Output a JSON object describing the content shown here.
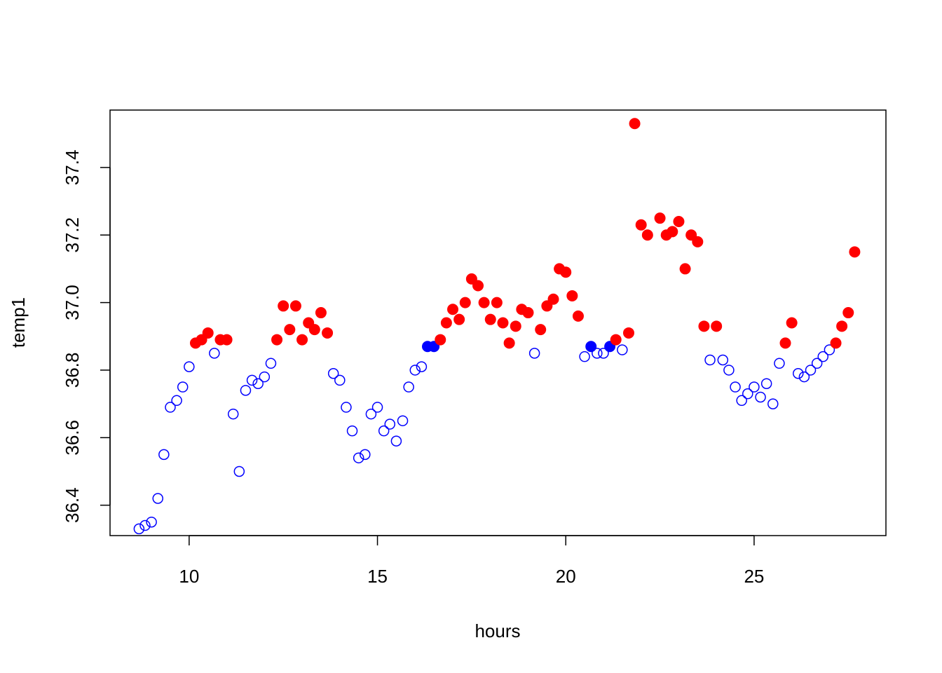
{
  "chart_data": {
    "type": "scatter",
    "title": "",
    "xlabel": "hours",
    "ylabel": "temp1",
    "xlim": [
      7.9,
      28.5
    ],
    "ylim": [
      36.31,
      37.57
    ],
    "x_ticks": [
      10,
      15,
      20,
      25
    ],
    "y_ticks": [
      36.4,
      36.6,
      36.8,
      37.0,
      37.2,
      37.4
    ],
    "x_tick_labels": [
      "10",
      "15",
      "20",
      "25"
    ],
    "y_tick_labels": [
      "36.4",
      "36.6",
      "36.8",
      "37.0",
      "37.2",
      "37.4"
    ],
    "grid": false,
    "legend": "none",
    "colors": {
      "red": "#ff0000",
      "blue": "#0000ff"
    },
    "points": [
      {
        "x": 8.67,
        "y": 36.33,
        "c": "blue",
        "f": false
      },
      {
        "x": 8.83,
        "y": 36.34,
        "c": "blue",
        "f": false
      },
      {
        "x": 9.0,
        "y": 36.35,
        "c": "blue",
        "f": false
      },
      {
        "x": 9.17,
        "y": 36.42,
        "c": "blue",
        "f": false
      },
      {
        "x": 9.33,
        "y": 36.55,
        "c": "blue",
        "f": false
      },
      {
        "x": 9.5,
        "y": 36.69,
        "c": "blue",
        "f": false
      },
      {
        "x": 9.67,
        "y": 36.71,
        "c": "blue",
        "f": false
      },
      {
        "x": 9.83,
        "y": 36.75,
        "c": "blue",
        "f": false
      },
      {
        "x": 10.0,
        "y": 36.81,
        "c": "blue",
        "f": false
      },
      {
        "x": 10.17,
        "y": 36.88,
        "c": "red",
        "f": true
      },
      {
        "x": 10.33,
        "y": 36.89,
        "c": "red",
        "f": true
      },
      {
        "x": 10.5,
        "y": 36.91,
        "c": "red",
        "f": true
      },
      {
        "x": 10.67,
        "y": 36.85,
        "c": "blue",
        "f": false
      },
      {
        "x": 10.83,
        "y": 36.89,
        "c": "red",
        "f": true
      },
      {
        "x": 11.0,
        "y": 36.89,
        "c": "red",
        "f": true
      },
      {
        "x": 11.17,
        "y": 36.67,
        "c": "blue",
        "f": false
      },
      {
        "x": 11.33,
        "y": 36.5,
        "c": "blue",
        "f": false
      },
      {
        "x": 11.5,
        "y": 36.74,
        "c": "blue",
        "f": false
      },
      {
        "x": 11.67,
        "y": 36.77,
        "c": "blue",
        "f": false
      },
      {
        "x": 11.83,
        "y": 36.76,
        "c": "blue",
        "f": false
      },
      {
        "x": 12.0,
        "y": 36.78,
        "c": "blue",
        "f": false
      },
      {
        "x": 12.17,
        "y": 36.82,
        "c": "blue",
        "f": false
      },
      {
        "x": 12.33,
        "y": 36.89,
        "c": "red",
        "f": true
      },
      {
        "x": 12.5,
        "y": 36.99,
        "c": "red",
        "f": true
      },
      {
        "x": 12.67,
        "y": 36.92,
        "c": "red",
        "f": true
      },
      {
        "x": 12.83,
        "y": 36.99,
        "c": "red",
        "f": true
      },
      {
        "x": 13.0,
        "y": 36.89,
        "c": "red",
        "f": true
      },
      {
        "x": 13.17,
        "y": 36.94,
        "c": "red",
        "f": true
      },
      {
        "x": 13.33,
        "y": 36.92,
        "c": "red",
        "f": true
      },
      {
        "x": 13.5,
        "y": 36.97,
        "c": "red",
        "f": true
      },
      {
        "x": 13.67,
        "y": 36.91,
        "c": "red",
        "f": true
      },
      {
        "x": 13.83,
        "y": 36.79,
        "c": "blue",
        "f": false
      },
      {
        "x": 14.0,
        "y": 36.77,
        "c": "blue",
        "f": false
      },
      {
        "x": 14.17,
        "y": 36.69,
        "c": "blue",
        "f": false
      },
      {
        "x": 14.33,
        "y": 36.62,
        "c": "blue",
        "f": false
      },
      {
        "x": 14.5,
        "y": 36.54,
        "c": "blue",
        "f": false
      },
      {
        "x": 14.67,
        "y": 36.55,
        "c": "blue",
        "f": false
      },
      {
        "x": 14.83,
        "y": 36.67,
        "c": "blue",
        "f": false
      },
      {
        "x": 15.0,
        "y": 36.69,
        "c": "blue",
        "f": false
      },
      {
        "x": 15.17,
        "y": 36.62,
        "c": "blue",
        "f": false
      },
      {
        "x": 15.33,
        "y": 36.64,
        "c": "blue",
        "f": false
      },
      {
        "x": 15.5,
        "y": 36.59,
        "c": "blue",
        "f": false
      },
      {
        "x": 15.67,
        "y": 36.65,
        "c": "blue",
        "f": false
      },
      {
        "x": 15.83,
        "y": 36.75,
        "c": "blue",
        "f": false
      },
      {
        "x": 16.0,
        "y": 36.8,
        "c": "blue",
        "f": false
      },
      {
        "x": 16.17,
        "y": 36.81,
        "c": "blue",
        "f": false
      },
      {
        "x": 16.33,
        "y": 36.87,
        "c": "blue",
        "f": true
      },
      {
        "x": 16.5,
        "y": 36.87,
        "c": "blue",
        "f": true
      },
      {
        "x": 16.67,
        "y": 36.89,
        "c": "red",
        "f": true
      },
      {
        "x": 16.83,
        "y": 36.94,
        "c": "red",
        "f": true
      },
      {
        "x": 17.0,
        "y": 36.98,
        "c": "red",
        "f": true
      },
      {
        "x": 17.17,
        "y": 36.95,
        "c": "red",
        "f": true
      },
      {
        "x": 17.33,
        "y": 37.0,
        "c": "red",
        "f": true
      },
      {
        "x": 17.5,
        "y": 37.07,
        "c": "red",
        "f": true
      },
      {
        "x": 17.67,
        "y": 37.05,
        "c": "red",
        "f": true
      },
      {
        "x": 17.83,
        "y": 37.0,
        "c": "red",
        "f": true
      },
      {
        "x": 18.0,
        "y": 36.95,
        "c": "red",
        "f": true
      },
      {
        "x": 18.17,
        "y": 37.0,
        "c": "red",
        "f": true
      },
      {
        "x": 18.33,
        "y": 36.94,
        "c": "red",
        "f": true
      },
      {
        "x": 18.5,
        "y": 36.88,
        "c": "red",
        "f": true
      },
      {
        "x": 18.67,
        "y": 36.93,
        "c": "red",
        "f": true
      },
      {
        "x": 18.83,
        "y": 36.98,
        "c": "red",
        "f": true
      },
      {
        "x": 19.0,
        "y": 36.97,
        "c": "red",
        "f": true
      },
      {
        "x": 19.17,
        "y": 36.85,
        "c": "blue",
        "f": false
      },
      {
        "x": 19.33,
        "y": 36.92,
        "c": "red",
        "f": true
      },
      {
        "x": 19.5,
        "y": 36.99,
        "c": "red",
        "f": true
      },
      {
        "x": 19.67,
        "y": 37.01,
        "c": "red",
        "f": true
      },
      {
        "x": 19.83,
        "y": 37.1,
        "c": "red",
        "f": true
      },
      {
        "x": 20.0,
        "y": 37.09,
        "c": "red",
        "f": true
      },
      {
        "x": 20.17,
        "y": 37.02,
        "c": "red",
        "f": true
      },
      {
        "x": 20.33,
        "y": 36.96,
        "c": "red",
        "f": true
      },
      {
        "x": 20.5,
        "y": 36.84,
        "c": "blue",
        "f": false
      },
      {
        "x": 20.67,
        "y": 36.87,
        "c": "blue",
        "f": true
      },
      {
        "x": 20.83,
        "y": 36.85,
        "c": "blue",
        "f": false
      },
      {
        "x": 21.0,
        "y": 36.85,
        "c": "blue",
        "f": false
      },
      {
        "x": 21.17,
        "y": 36.87,
        "c": "blue",
        "f": true
      },
      {
        "x": 21.33,
        "y": 36.89,
        "c": "red",
        "f": true
      },
      {
        "x": 21.5,
        "y": 36.86,
        "c": "blue",
        "f": false
      },
      {
        "x": 21.67,
        "y": 36.91,
        "c": "red",
        "f": true
      },
      {
        "x": 21.83,
        "y": 37.53,
        "c": "red",
        "f": true
      },
      {
        "x": 22.0,
        "y": 37.23,
        "c": "red",
        "f": true
      },
      {
        "x": 22.17,
        "y": 37.2,
        "c": "red",
        "f": true
      },
      {
        "x": 22.5,
        "y": 37.25,
        "c": "red",
        "f": true
      },
      {
        "x": 22.67,
        "y": 37.2,
        "c": "red",
        "f": true
      },
      {
        "x": 22.83,
        "y": 37.21,
        "c": "red",
        "f": true
      },
      {
        "x": 23.0,
        "y": 37.24,
        "c": "red",
        "f": true
      },
      {
        "x": 23.17,
        "y": 37.1,
        "c": "red",
        "f": true
      },
      {
        "x": 23.33,
        "y": 37.2,
        "c": "red",
        "f": true
      },
      {
        "x": 23.5,
        "y": 37.18,
        "c": "red",
        "f": true
      },
      {
        "x": 23.67,
        "y": 36.93,
        "c": "red",
        "f": true
      },
      {
        "x": 23.83,
        "y": 36.83,
        "c": "blue",
        "f": false
      },
      {
        "x": 24.0,
        "y": 36.93,
        "c": "red",
        "f": true
      },
      {
        "x": 24.17,
        "y": 36.83,
        "c": "blue",
        "f": false
      },
      {
        "x": 24.33,
        "y": 36.8,
        "c": "blue",
        "f": false
      },
      {
        "x": 24.5,
        "y": 36.75,
        "c": "blue",
        "f": false
      },
      {
        "x": 24.67,
        "y": 36.71,
        "c": "blue",
        "f": false
      },
      {
        "x": 24.83,
        "y": 36.73,
        "c": "blue",
        "f": false
      },
      {
        "x": 25.0,
        "y": 36.75,
        "c": "blue",
        "f": false
      },
      {
        "x": 25.17,
        "y": 36.72,
        "c": "blue",
        "f": false
      },
      {
        "x": 25.33,
        "y": 36.76,
        "c": "blue",
        "f": false
      },
      {
        "x": 25.5,
        "y": 36.7,
        "c": "blue",
        "f": false
      },
      {
        "x": 25.67,
        "y": 36.82,
        "c": "blue",
        "f": false
      },
      {
        "x": 25.83,
        "y": 36.88,
        "c": "red",
        "f": true
      },
      {
        "x": 26.0,
        "y": 36.94,
        "c": "red",
        "f": true
      },
      {
        "x": 26.17,
        "y": 36.79,
        "c": "blue",
        "f": false
      },
      {
        "x": 26.33,
        "y": 36.78,
        "c": "blue",
        "f": false
      },
      {
        "x": 26.5,
        "y": 36.8,
        "c": "blue",
        "f": false
      },
      {
        "x": 26.67,
        "y": 36.82,
        "c": "blue",
        "f": false
      },
      {
        "x": 26.83,
        "y": 36.84,
        "c": "blue",
        "f": false
      },
      {
        "x": 27.0,
        "y": 36.86,
        "c": "blue",
        "f": false
      },
      {
        "x": 27.17,
        "y": 36.88,
        "c": "red",
        "f": true
      },
      {
        "x": 27.33,
        "y": 36.93,
        "c": "red",
        "f": true
      },
      {
        "x": 27.5,
        "y": 36.97,
        "c": "red",
        "f": true
      },
      {
        "x": 27.67,
        "y": 37.15,
        "c": "red",
        "f": true
      }
    ]
  }
}
